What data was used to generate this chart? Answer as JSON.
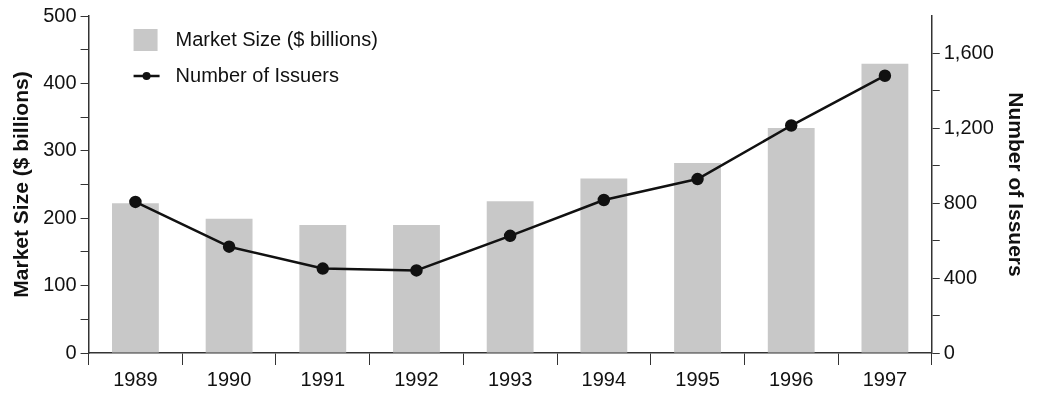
{
  "chart_data": {
    "type": "bar",
    "ylabel": "Market Size ($ billions)",
    "y2label": "Number of Issuers",
    "categories": [
      "1989",
      "1990",
      "1991",
      "1992",
      "1993",
      "1994",
      "1995",
      "1996",
      "1997"
    ],
    "series": [
      {
        "name": "Market Size ($ billions)",
        "color": "#c8c8c8",
        "values": [
          222,
          199,
          190,
          190,
          225,
          259,
          282,
          334,
          429
        ]
      },
      {
        "name": "Number of Issuers",
        "type": "line",
        "axis": "y2",
        "color": "#111111",
        "marker": "circle",
        "values": [
          807,
          568,
          451,
          441,
          626,
          817,
          929,
          1215,
          1481
        ]
      }
    ],
    "ylim": [
      0,
      500
    ],
    "yticks": [
      0,
      {
        "value": 50,
        "label": null
      },
      100,
      {
        "value": 150,
        "label": null
      },
      200,
      {
        "value": 250,
        "label": null
      },
      300,
      {
        "value": 350,
        "label": null
      },
      400,
      {
        "value": 450,
        "label": null
      },
      500
    ],
    "y2lim": [
      0,
      1800
    ],
    "y2ticks": [
      0,
      {
        "value": 200,
        "label": null
      },
      {
        "value": 400,
        "label": "400"
      },
      {
        "value": 600,
        "label": null
      },
      {
        "value": 800,
        "label": "800"
      },
      {
        "value": 1000,
        "label": null
      },
      {
        "value": 1200,
        "label": "1,200"
      },
      {
        "value": 1400,
        "label": null
      },
      {
        "value": 1600,
        "label": "1,600"
      }
    ],
    "grid": false,
    "legend": "top left"
  }
}
